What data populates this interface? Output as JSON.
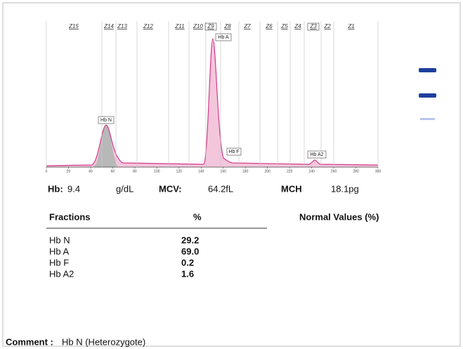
{
  "chart": {
    "zones": [
      "Z15",
      "Z14",
      "Z13",
      "Z12",
      "Z11",
      "Z10",
      "Z9",
      "Z8",
      "Z7",
      "Z6",
      "Z5",
      "Z4",
      "Z3",
      "Z2",
      "Z1"
    ],
    "axis_ticks": [
      0,
      20,
      40,
      60,
      80,
      100,
      120,
      140,
      160,
      180,
      200,
      220,
      240,
      260,
      280,
      300
    ],
    "peaks": [
      "Hb N",
      "Hb A",
      "Hb F",
      "Hb A2"
    ]
  },
  "indices": {
    "hb_label": "Hb:",
    "hb_value": "9.4",
    "hb_unit": "g/dL",
    "mcv_label": "MCV:",
    "mcv_value": "64.2fL",
    "mch_label": "MCH",
    "mch_value": "18.1pg"
  },
  "table": {
    "headers": [
      "Fractions",
      "%",
      "Normal Values (%)"
    ],
    "rows": [
      [
        "Hb N",
        "29.2"
      ],
      [
        "Hb A",
        "69.0"
      ],
      [
        "Hb F",
        "0.2"
      ],
      [
        "Hb A2",
        "1.6"
      ]
    ]
  },
  "comment": {
    "label": "Comment :",
    "text": "Hb N (Heterozygote)"
  }
}
